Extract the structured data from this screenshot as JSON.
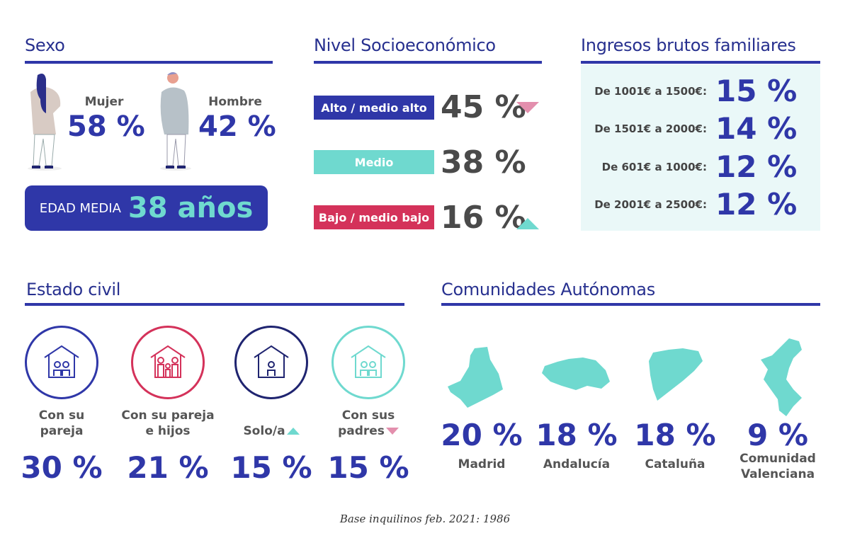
{
  "sexo": {
    "title": "Sexo",
    "mujer": {
      "label": "Mujer",
      "value": "58 %"
    },
    "hombre": {
      "label": "Hombre",
      "value": "42 %"
    },
    "edad_label": "EDAD MEDIA",
    "edad_value": "38 años"
  },
  "nivel": {
    "title": "Nivel Socioeconómico",
    "items": [
      {
        "label": "Alto / medio alto",
        "value": "45 %",
        "color": "#2f37a8",
        "trend": "down"
      },
      {
        "label": "Medio",
        "value": "38 %",
        "color": "#6fd9cf",
        "trend": "none"
      },
      {
        "label": "Bajo / medio bajo",
        "value": "16 %",
        "color": "#d4325a",
        "trend": "up"
      }
    ]
  },
  "ingresos": {
    "title": "Ingresos brutos familiares",
    "items": [
      {
        "label": "De 1001€ a 1500€:",
        "value": "15 %"
      },
      {
        "label": "De 1501€ a 2000€:",
        "value": "14 %"
      },
      {
        "label": "De 601€ a 1000€:",
        "value": "12 %"
      },
      {
        "label": "De 2001€ a 2500€:",
        "value": "12 %"
      }
    ]
  },
  "estado": {
    "title": "Estado civil",
    "items": [
      {
        "label1": "Con su",
        "label2": "pareja",
        "value": "30 %",
        "color": "#2f37a8",
        "icon": "house-couple-icon"
      },
      {
        "label1": "Con su pareja",
        "label2": "e hijos",
        "value": "21 %",
        "color": "#d4325a",
        "icon": "house-family-icon"
      },
      {
        "label1": "",
        "label2": "Solo/a",
        "value": "15 %",
        "color": "#1f2470",
        "icon": "house-single-icon",
        "trend": "up"
      },
      {
        "label1": "Con sus",
        "label2": "padres",
        "value": "15 %",
        "color": "#6fd9cf",
        "icon": "house-parents-icon",
        "trend": "down"
      }
    ]
  },
  "comunidades": {
    "title": "Comunidades Autónomas",
    "items": [
      {
        "name1": "Madrid",
        "name2": "",
        "value": "20 %"
      },
      {
        "name1": "Andalucía",
        "name2": "",
        "value": "18 %"
      },
      {
        "name1": "Cataluña",
        "name2": "",
        "value": "18 %"
      },
      {
        "name1": "Comunidad",
        "name2": "Valenciana",
        "value": "9 %"
      }
    ]
  },
  "footer": "Base inquilinos feb. 2021: 1986",
  "colors": {
    "navy": "#2f37a8",
    "teal": "#6fd9cf",
    "crimson": "#d4325a",
    "pink": "#e38fad",
    "panel": "#eaf8f8"
  }
}
